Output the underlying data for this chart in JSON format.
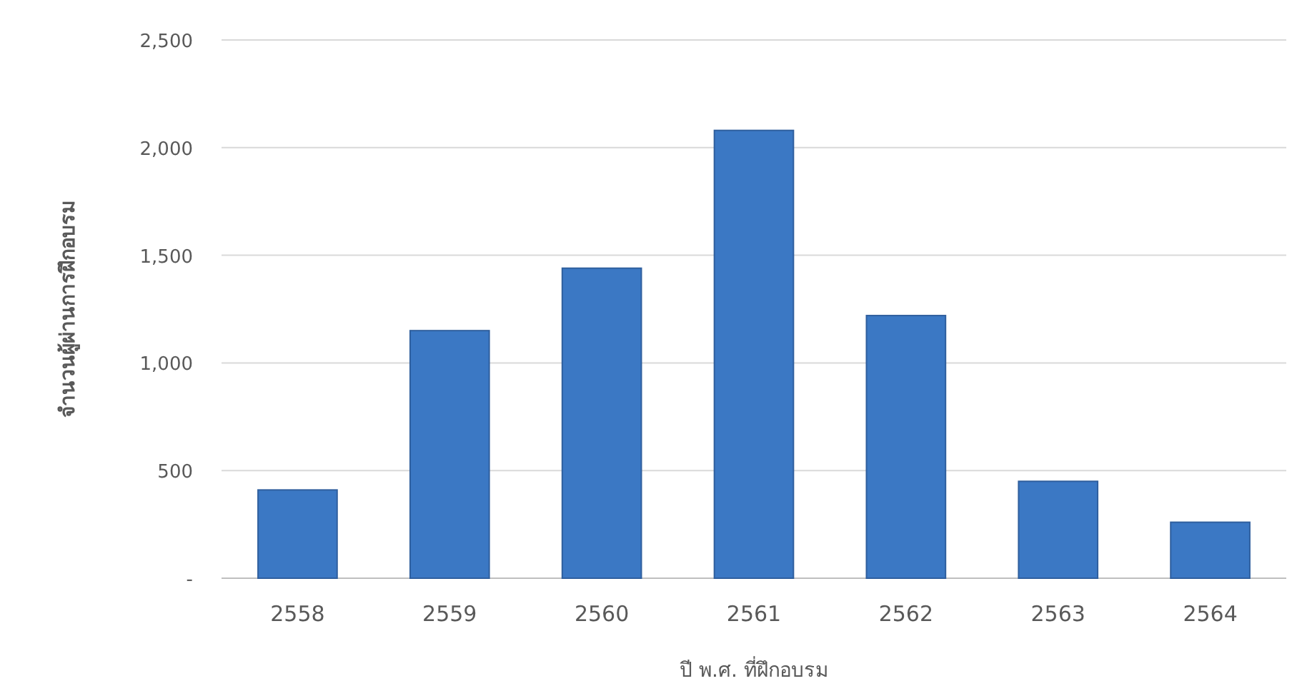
{
  "chart_data": {
    "type": "bar",
    "xlabel": "ปี พ.ศ. ที่ฝึกอบรม",
    "ylabel": "จำนวนผู้ผ่านการฝึกอบรม",
    "categories": [
      "2558",
      "2559",
      "2560",
      "2561",
      "2562",
      "2563",
      "2564"
    ],
    "values": [
      410,
      1150,
      1440,
      2080,
      1220,
      450,
      260
    ],
    "color": "#3b78c4",
    "ylim": [
      0,
      2500
    ],
    "yticks": [
      {
        "value": 0,
        "label": "-"
      },
      500,
      {
        "value": 1000,
        "label": "1,000"
      },
      {
        "value": 1500,
        "label": "1,500"
      },
      {
        "value": 2000,
        "label": "2,000"
      },
      {
        "value": 2500,
        "label": "2,500"
      }
    ],
    "grid": "y"
  }
}
